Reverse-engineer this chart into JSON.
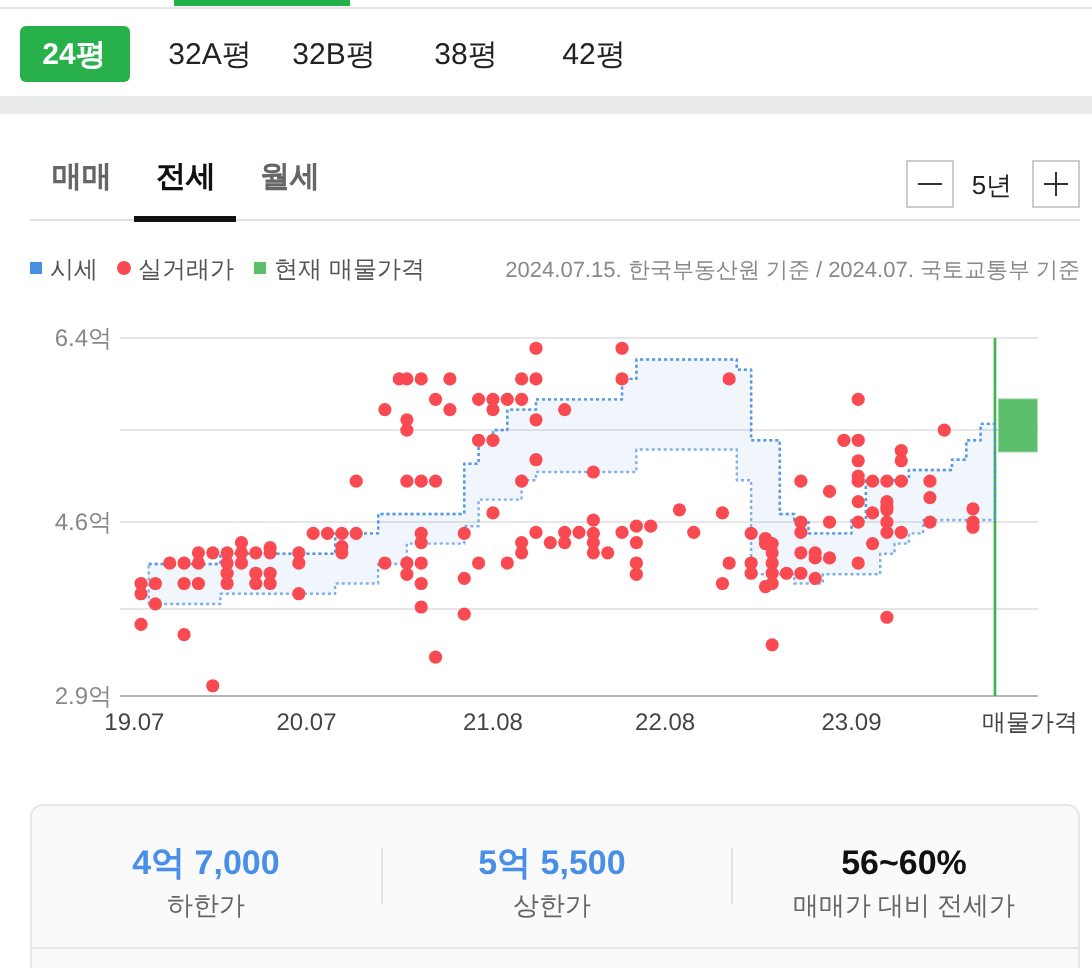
{
  "chart_data": [
    {
      "type": "other",
      "annotations": [
        "24평",
        "32A평",
        "32B평",
        "38평",
        "42평",
        "매매",
        "전세",
        "월세",
        "5년"
      ]
    },
    {
      "type": "scatter",
      "annotations": [
        "2024.07.15. 한국부동산원 기준 / 2024.07. 국토교통부 기준"
      ],
      "xlim": [
        "2019-06-01",
        "2024-10-01"
      ],
      "xticks": [
        {
          "value": "2019-07-01",
          "label": "19.07"
        },
        {
          "value": "2020-07-01",
          "label": "20.07"
        },
        {
          "value": "2021-08-01",
          "label": "21.08"
        },
        {
          "value": "2022-08-01",
          "label": "22.08"
        },
        {
          "value": "2023-09-01",
          "label": "23.09"
        },
        {
          "value": "2024-09-15",
          "label": "매물가격"
        }
      ],
      "ylim": [
        2.9,
        6.4
      ],
      "yticks": [
        {
          "value": 2.9,
          "label": "2.9억"
        },
        {
          "value": 3.75,
          "label": null
        },
        {
          "value": 4.6,
          "label": "4.6억"
        },
        {
          "value": 5.5,
          "label": null
        },
        {
          "value": 6.4,
          "label": "6.4억"
        }
      ],
      "grid": "y",
      "legend": "top left",
      "ref_lines": [
        {
          "axis": "x",
          "value": "2024-07-01",
          "color": "#3cb44b"
        }
      ],
      "series": [
        {
          "name": "시세",
          "type": "step",
          "color": "#4a90e2",
          "line_style": "dotted",
          "x": [
            "2019-08",
            "2020-01",
            "2020-09",
            "2020-12",
            "2021-02",
            "2021-06",
            "2021-07",
            "2021-08",
            "2021-09",
            "2021-10",
            "2021-11",
            "2022-05",
            "2022-06",
            "2023-01",
            "2023-02",
            "2023-04",
            "2023-05",
            "2023-06",
            "2023-07",
            "2023-09",
            "2023-10",
            "2023-11",
            "2023-12",
            "2024-01",
            "2024-02",
            "2024-04",
            "2024-05",
            "2024-06",
            "2024-07"
          ],
          "values": [
            4.19,
            4.29,
            4.49,
            4.68,
            4.68,
            5.17,
            5.4,
            5.5,
            5.7,
            5.7,
            5.8,
            6.0,
            6.19,
            6.09,
            5.4,
            4.68,
            4.62,
            4.49,
            4.49,
            4.62,
            5.01,
            5.01,
            5.01,
            5.11,
            5.11,
            5.21,
            5.4,
            5.56,
            5.56
          ],
          "upper": [
            4.19,
            4.29,
            4.49,
            4.68,
            4.68,
            5.17,
            5.4,
            5.5,
            5.7,
            5.7,
            5.8,
            6.0,
            6.19,
            6.09,
            5.4,
            4.68,
            4.62,
            4.49,
            4.49,
            4.62,
            5.01,
            5.01,
            5.01,
            5.11,
            5.11,
            5.21,
            5.4,
            5.56,
            5.56
          ],
          "lower": [
            3.8,
            3.9,
            4.0,
            4.19,
            4.39,
            4.56,
            4.82,
            4.82,
            4.82,
            5.01,
            5.09,
            5.09,
            5.31,
            5.01,
            4.09,
            4.09,
            4.0,
            4.0,
            4.09,
            4.09,
            4.09,
            4.29,
            4.39,
            4.49,
            4.62,
            4.62,
            4.62,
            4.62,
            4.62
          ]
        },
        {
          "name": "실거래가",
          "type": "scatter",
          "color": "#f94a52",
          "marker": "circle",
          "x": [
            "2019-07-15",
            "2019-07-15",
            "2019-07-15",
            "2019-08-15",
            "2019-08-15",
            "2019-09-15",
            "2019-10-15",
            "2019-10-15",
            "2019-10-15",
            "2019-11-15",
            "2019-11-15",
            "2019-11-15",
            "2019-12-15",
            "2019-12-15",
            "2020-01-15",
            "2020-01-15",
            "2020-01-15",
            "2020-01-15",
            "2020-02-15",
            "2020-02-15",
            "2020-02-15",
            "2020-03-15",
            "2020-03-15",
            "2020-03-15",
            "2020-04-15",
            "2020-04-15",
            "2020-04-15",
            "2020-04-15",
            "2020-06-15",
            "2020-06-15",
            "2020-06-15",
            "2020-07-15",
            "2020-08-15",
            "2020-09-15",
            "2020-09-15",
            "2020-09-15",
            "2020-10-15",
            "2020-10-15",
            "2020-12-15",
            "2020-12-15",
            "2021-01-15",
            "2021-02-01",
            "2021-02-01",
            "2021-02-01",
            "2021-02-01",
            "2021-02-01",
            "2021-02-01",
            "2021-03-01",
            "2021-03-01",
            "2021-03-01",
            "2021-03-01",
            "2021-03-01",
            "2021-03-01",
            "2021-03-01",
            "2021-04-01",
            "2021-04-01",
            "2021-04-01",
            "2021-05-01",
            "2021-05-01",
            "2021-06-01",
            "2021-06-01",
            "2021-06-01",
            "2021-07-01",
            "2021-07-01",
            "2021-07-01",
            "2021-08-01",
            "2021-08-01",
            "2021-08-01",
            "2021-08-01",
            "2021-09-01",
            "2021-09-01",
            "2021-10-01",
            "2021-10-01",
            "2021-10-01",
            "2021-10-01",
            "2021-10-01",
            "2021-11-01",
            "2021-11-01",
            "2021-11-01",
            "2021-11-01",
            "2021-11-01",
            "2021-12-01",
            "2022-01-01",
            "2022-01-01",
            "2022-01-01",
            "2022-02-01",
            "2022-03-01",
            "2022-03-01",
            "2022-03-01",
            "2022-03-01",
            "2022-03-01",
            "2022-04-01",
            "2022-05-01",
            "2022-05-01",
            "2022-05-01",
            "2022-06-01",
            "2022-06-01",
            "2022-06-01",
            "2022-06-01",
            "2022-07-01",
            "2022-09-01",
            "2022-10-01",
            "2022-12-01",
            "2022-12-01",
            "2022-12-15",
            "2022-12-15",
            "2023-02-01",
            "2023-02-01",
            "2023-02-01",
            "2023-03-01",
            "2023-03-01",
            "2023-03-01",
            "2023-03-15",
            "2023-03-15",
            "2023-03-15",
            "2023-03-15",
            "2023-03-15",
            "2023-03-15",
            "2023-04-15",
            "2023-05-15",
            "2023-05-15",
            "2023-05-15",
            "2023-05-15",
            "2023-05-15",
            "2023-06-15",
            "2023-06-15",
            "2023-06-15",
            "2023-07-15",
            "2023-07-15",
            "2023-07-15",
            "2023-08-15",
            "2023-09-15",
            "2023-09-15",
            "2023-09-15",
            "2023-09-15",
            "2023-09-15",
            "2023-09-15",
            "2023-09-15",
            "2023-09-15",
            "2023-10-15",
            "2023-10-15",
            "2023-10-15",
            "2023-11-15",
            "2023-11-15",
            "2023-11-15",
            "2023-11-15",
            "2023-11-15",
            "2023-11-15",
            "2023-11-15",
            "2023-12-15",
            "2023-12-15",
            "2023-12-15",
            "2023-12-15",
            "2024-02-15",
            "2024-02-15",
            "2024-02-15",
            "2024-03-15",
            "2024-05-15",
            "2024-05-15",
            "2024-05-15"
          ],
          "values": [
            4.0,
            3.9,
            3.6,
            4.0,
            3.8,
            4.2,
            4.2,
            4.0,
            3.5,
            4.3,
            4.2,
            4.0,
            4.3,
            3.0,
            4.3,
            4.2,
            4.1,
            4.0,
            4.4,
            4.3,
            4.2,
            4.3,
            4.1,
            4.0,
            4.35,
            4.3,
            4.1,
            4.0,
            4.3,
            4.2,
            3.9,
            4.49,
            4.49,
            4.49,
            4.36,
            4.3,
            5.0,
            4.49,
            5.7,
            4.2,
            6.0,
            6.0,
            5.6,
            5.5,
            5.0,
            4.2,
            4.09,
            6.0,
            5.0,
            4.49,
            4.4,
            4.2,
            4.0,
            3.77,
            5.0,
            5.8,
            3.28,
            6.0,
            5.7,
            4.49,
            4.05,
            3.7,
            5.8,
            5.4,
            4.2,
            5.8,
            5.7,
            5.4,
            4.69,
            5.8,
            4.2,
            6.0,
            5.8,
            5.0,
            4.4,
            4.3,
            6.3,
            6.0,
            5.6,
            5.21,
            4.5,
            4.4,
            5.7,
            4.5,
            4.4,
            4.5,
            5.09,
            4.62,
            4.49,
            4.4,
            4.3,
            4.3,
            6.3,
            6.0,
            4.5,
            4.56,
            4.4,
            4.2,
            4.09,
            4.56,
            4.72,
            4.5,
            4.69,
            4.0,
            6.0,
            4.2,
            4.49,
            4.2,
            4.1,
            4.44,
            4.39,
            3.97,
            4.39,
            4.3,
            4.2,
            4.1,
            4.0,
            3.4,
            4.1,
            5.0,
            4.6,
            4.5,
            4.3,
            4.1,
            4.3,
            4.25,
            4.05,
            4.9,
            4.6,
            4.25,
            5.4,
            5.8,
            5.4,
            5.2,
            5.05,
            5.0,
            4.8,
            4.6,
            4.2,
            5.0,
            4.69,
            4.39,
            5.0,
            4.8,
            4.75,
            4.72,
            4.6,
            4.5,
            3.67,
            5.3,
            5.2,
            5.0,
            4.5,
            5.0,
            4.84,
            4.6,
            5.5,
            4.73,
            4.6,
            4.55
          ]
        },
        {
          "name": "현재 매물가격",
          "type": "bar",
          "color": "#5dbe6c",
          "x": [
            "2024-08-19"
          ],
          "base": [
            5.29
          ],
          "values": [
            0.51
          ]
        }
      ]
    },
    {
      "type": "other",
      "annotations": [
        "4억 7,000",
        "하한가",
        "5억 5,500",
        "상한가",
        "56~60%",
        "매매가 대비 전세가"
      ]
    }
  ]
}
